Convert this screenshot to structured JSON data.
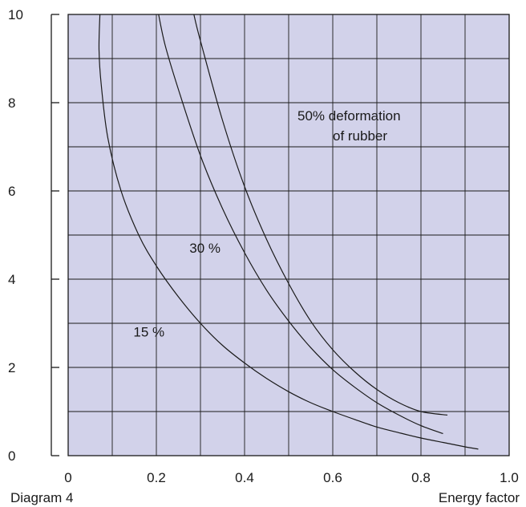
{
  "chart_data": {
    "type": "line",
    "title": "",
    "xlabel": "Energy factor",
    "ylabel": "",
    "caption": "Diagram 4",
    "xlim": [
      0,
      1.0
    ],
    "ylim": [
      0,
      10
    ],
    "grid": true,
    "plot_bg": "#d2d2ea",
    "line_color": "#1a1a1a",
    "x_ticks": [
      {
        "v": 0,
        "label": "0"
      },
      {
        "v": 0.2,
        "label": "0.2"
      },
      {
        "v": 0.4,
        "label": "0.4"
      },
      {
        "v": 0.6,
        "label": "0.6"
      },
      {
        "v": 0.8,
        "label": "0.8"
      },
      {
        "v": 1.0,
        "label": "1.0"
      }
    ],
    "y_ticks": [
      {
        "v": 0,
        "label": "0"
      },
      {
        "v": 2,
        "label": "2"
      },
      {
        "v": 4,
        "label": "4"
      },
      {
        "v": 6,
        "label": "6"
      },
      {
        "v": 8,
        "label": "8"
      },
      {
        "v": 10,
        "label": "10"
      }
    ],
    "series": [
      {
        "name": "15 %",
        "x": [
          0.072,
          0.07,
          0.075,
          0.09,
          0.12,
          0.16,
          0.2,
          0.25,
          0.3,
          0.35,
          0.4,
          0.45,
          0.5,
          0.55,
          0.6,
          0.65,
          0.7,
          0.75,
          0.8,
          0.85,
          0.9,
          0.93
        ],
        "y": [
          10.0,
          9.2,
          8.4,
          7.2,
          6.0,
          5.0,
          4.3,
          3.6,
          3.0,
          2.5,
          2.1,
          1.75,
          1.45,
          1.2,
          1.0,
          0.82,
          0.65,
          0.52,
          0.4,
          0.3,
          0.2,
          0.15
        ]
      },
      {
        "name": "30 %",
        "x": [
          0.205,
          0.22,
          0.25,
          0.3,
          0.35,
          0.4,
          0.45,
          0.5,
          0.55,
          0.6,
          0.65,
          0.7,
          0.75,
          0.8,
          0.85
        ],
        "y": [
          10.0,
          9.3,
          8.3,
          6.8,
          5.6,
          4.6,
          3.75,
          3.05,
          2.45,
          1.95,
          1.55,
          1.2,
          0.92,
          0.68,
          0.5
        ]
      },
      {
        "name": "50% deformation of rubber",
        "x": [
          0.285,
          0.3,
          0.35,
          0.4,
          0.45,
          0.5,
          0.55,
          0.6,
          0.65,
          0.7,
          0.75,
          0.8,
          0.86
        ],
        "y": [
          10.0,
          9.4,
          7.6,
          6.1,
          4.9,
          3.9,
          3.05,
          2.4,
          1.9,
          1.5,
          1.2,
          1.0,
          0.92
        ]
      }
    ],
    "annotations": [
      {
        "text": "50% deformation",
        "x": 0.52,
        "y": 7.6
      },
      {
        "text": "of rubber",
        "x": 0.6,
        "y": 7.15
      },
      {
        "text": "30 %",
        "x": 0.275,
        "y": 4.6
      },
      {
        "text": "15 %",
        "x": 0.148,
        "y": 2.7
      }
    ]
  }
}
